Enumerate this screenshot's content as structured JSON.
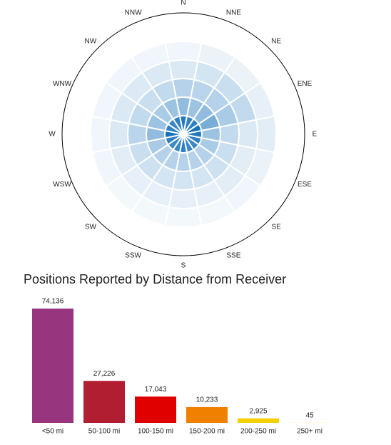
{
  "chart_data": [
    {
      "type": "polar-heatmap",
      "categories": [
        "N",
        "NNE",
        "NE",
        "ENE",
        "E",
        "ESE",
        "SE",
        "SSE",
        "S",
        "SSW",
        "SW",
        "WSW",
        "W",
        "WNW",
        "NW",
        "NNW"
      ],
      "values": [
        [
          90,
          45,
          30,
          15,
          6
        ],
        [
          85,
          40,
          28,
          18,
          8
        ],
        [
          85,
          45,
          30,
          22,
          8
        ],
        [
          95,
          55,
          35,
          25,
          10
        ],
        [
          90,
          40,
          25,
          15,
          12
        ],
        [
          85,
          35,
          22,
          12,
          8
        ],
        [
          80,
          30,
          20,
          12,
          6
        ],
        [
          80,
          30,
          18,
          10,
          5
        ],
        [
          85,
          30,
          18,
          10,
          5
        ],
        [
          80,
          30,
          18,
          10,
          5
        ],
        [
          80,
          30,
          20,
          10,
          5
        ],
        [
          85,
          35,
          22,
          12,
          6
        ],
        [
          95,
          45,
          28,
          15,
          6
        ],
        [
          85,
          40,
          25,
          15,
          6
        ],
        [
          80,
          35,
          22,
          14,
          6
        ],
        [
          85,
          40,
          25,
          15,
          6
        ]
      ],
      "color": "#0a6ab8"
    },
    {
      "type": "bar",
      "title": "Positions Reported by Distance from Receiver",
      "categories": [
        "<50 mi",
        "50-100 mi",
        "100-150 mi",
        "150-200 mi",
        "200-250 mi",
        "250+ mi"
      ],
      "values": [
        74136,
        27226,
        17043,
        10233,
        2925,
        45
      ],
      "value_labels": [
        "74,136",
        "27,226",
        "17,043",
        "10,233",
        "2,925",
        "45"
      ],
      "colors": [
        "#97357f",
        "#b21e31",
        "#e00000",
        "#ef8000",
        "#f5d000",
        "#f5d000"
      ]
    }
  ]
}
